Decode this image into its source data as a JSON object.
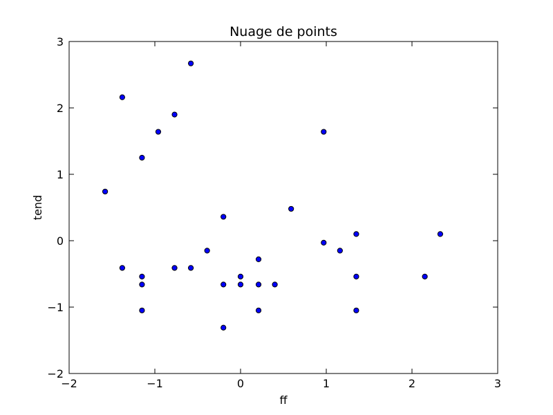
{
  "chart_data": {
    "type": "scatter",
    "title": "Nuage de points",
    "xlabel": "ff",
    "ylabel": "tend",
    "xlim": [
      -2,
      3
    ],
    "ylim": [
      -2,
      3
    ],
    "x_ticks": [
      -2,
      -1,
      0,
      1,
      2,
      3
    ],
    "y_ticks": [
      -2,
      -1,
      0,
      1,
      2,
      3
    ],
    "x_tick_labels": [
      "−2",
      "−1",
      "0",
      "1",
      "2",
      "3"
    ],
    "y_tick_labels": [
      "−2",
      "−1",
      "0",
      "1",
      "2",
      "3"
    ],
    "grid": false,
    "marker_color": "#0000ff",
    "series": [
      {
        "points": [
          {
            "x": -1.58,
            "y": 0.74
          },
          {
            "x": -1.38,
            "y": 2.16
          },
          {
            "x": -1.38,
            "y": -0.41
          },
          {
            "x": -1.15,
            "y": 1.25
          },
          {
            "x": -1.15,
            "y": -0.54
          },
          {
            "x": -1.15,
            "y": -0.66
          },
          {
            "x": -1.15,
            "y": -1.05
          },
          {
            "x": -0.96,
            "y": 1.64
          },
          {
            "x": -0.77,
            "y": 1.9
          },
          {
            "x": -0.77,
            "y": -0.41
          },
          {
            "x": -0.58,
            "y": 2.67
          },
          {
            "x": -0.58,
            "y": -0.41
          },
          {
            "x": -0.39,
            "y": -0.15
          },
          {
            "x": -0.2,
            "y": 0.36
          },
          {
            "x": -0.2,
            "y": -0.66
          },
          {
            "x": -0.2,
            "y": -1.31
          },
          {
            "x": 0.0,
            "y": -0.54
          },
          {
            "x": 0.0,
            "y": -0.66
          },
          {
            "x": 0.21,
            "y": -0.28
          },
          {
            "x": 0.21,
            "y": -0.66
          },
          {
            "x": 0.21,
            "y": -1.05
          },
          {
            "x": 0.4,
            "y": -0.66
          },
          {
            "x": 0.59,
            "y": 0.48
          },
          {
            "x": 0.97,
            "y": 1.64
          },
          {
            "x": 0.97,
            "y": -0.03
          },
          {
            "x": 1.16,
            "y": -0.15
          },
          {
            "x": 1.35,
            "y": 0.1
          },
          {
            "x": 1.35,
            "y": -0.54
          },
          {
            "x": 1.35,
            "y": -1.05
          },
          {
            "x": 2.15,
            "y": -0.54
          },
          {
            "x": 2.33,
            "y": 0.1
          }
        ]
      }
    ]
  }
}
